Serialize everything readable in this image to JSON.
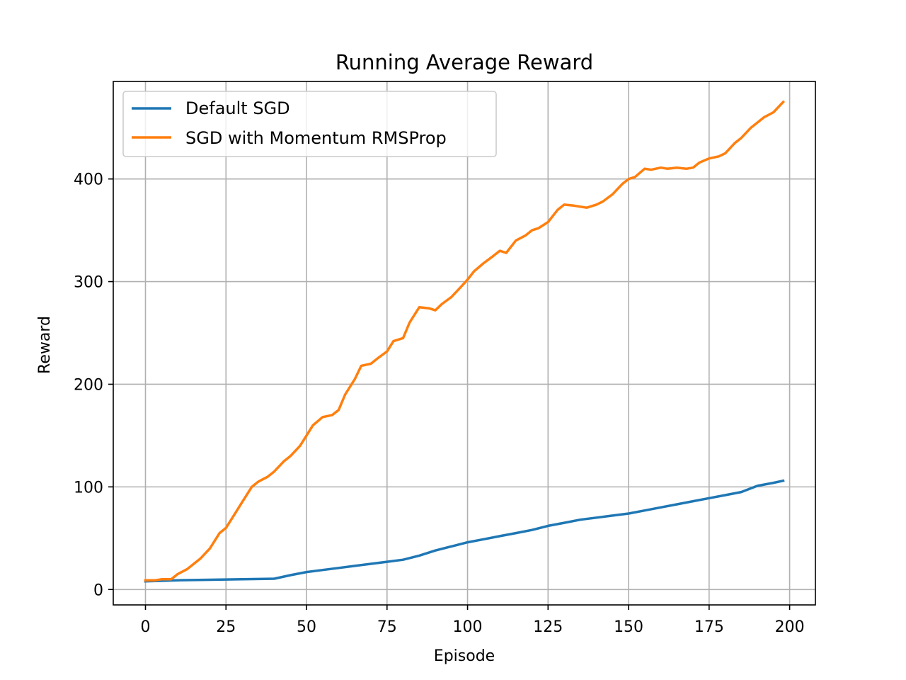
{
  "chart_data": {
    "type": "line",
    "title": "Running Average Reward",
    "xlabel": "Episode",
    "ylabel": "Reward",
    "xlim": [
      -10,
      208
    ],
    "ylim": [
      -15,
      495
    ],
    "xticks": [
      0,
      25,
      50,
      75,
      100,
      125,
      150,
      175,
      200
    ],
    "yticks": [
      0,
      100,
      200,
      300,
      400
    ],
    "grid": true,
    "legend_position": "top-left",
    "series": [
      {
        "name": "Default SGD",
        "color": "#1f77b4",
        "x": [
          0,
          10,
          20,
          30,
          40,
          45,
          50,
          55,
          60,
          65,
          70,
          75,
          80,
          85,
          90,
          95,
          100,
          105,
          110,
          115,
          120,
          125,
          130,
          135,
          140,
          145,
          150,
          155,
          160,
          165,
          170,
          175,
          180,
          185,
          190,
          195,
          198
        ],
        "values": [
          8,
          9,
          9.5,
          10,
          10.5,
          14,
          17,
          19,
          21,
          23,
          25,
          27,
          29,
          33,
          38,
          42,
          46,
          49,
          52,
          55,
          58,
          62,
          65,
          68,
          70,
          72,
          74,
          77,
          80,
          83,
          86,
          89,
          92,
          95,
          101,
          104,
          106
        ]
      },
      {
        "name": "SGD with Momentum RMSProp",
        "color": "#ff7f0e",
        "x": [
          0,
          3,
          5,
          8,
          10,
          13,
          15,
          17,
          20,
          23,
          25,
          27,
          30,
          33,
          35,
          38,
          40,
          43,
          45,
          48,
          50,
          52,
          55,
          58,
          60,
          62,
          65,
          67,
          70,
          72,
          75,
          77,
          80,
          82,
          85,
          88,
          90,
          92,
          95,
          98,
          100,
          102,
          105,
          108,
          110,
          112,
          115,
          118,
          120,
          122,
          125,
          128,
          130,
          133,
          135,
          137,
          140,
          142,
          145,
          148,
          150,
          152,
          155,
          157,
          160,
          162,
          165,
          168,
          170,
          172,
          175,
          178,
          180,
          183,
          185,
          188,
          190,
          192,
          195,
          198
        ],
        "values": [
          9,
          9,
          10,
          10,
          15,
          20,
          25,
          30,
          40,
          55,
          60,
          70,
          85,
          100,
          105,
          110,
          115,
          125,
          130,
          140,
          150,
          160,
          168,
          170,
          175,
          190,
          205,
          218,
          220,
          225,
          232,
          242,
          245,
          260,
          275,
          274,
          272,
          278,
          285,
          295,
          302,
          310,
          318,
          325,
          330,
          328,
          340,
          345,
          350,
          352,
          358,
          370,
          375,
          374,
          373,
          372,
          375,
          378,
          385,
          395,
          400,
          402,
          410,
          409,
          411,
          410,
          411,
          410,
          411,
          416,
          420,
          422,
          425,
          435,
          440,
          450,
          455,
          460,
          465,
          475
        ]
      }
    ]
  }
}
